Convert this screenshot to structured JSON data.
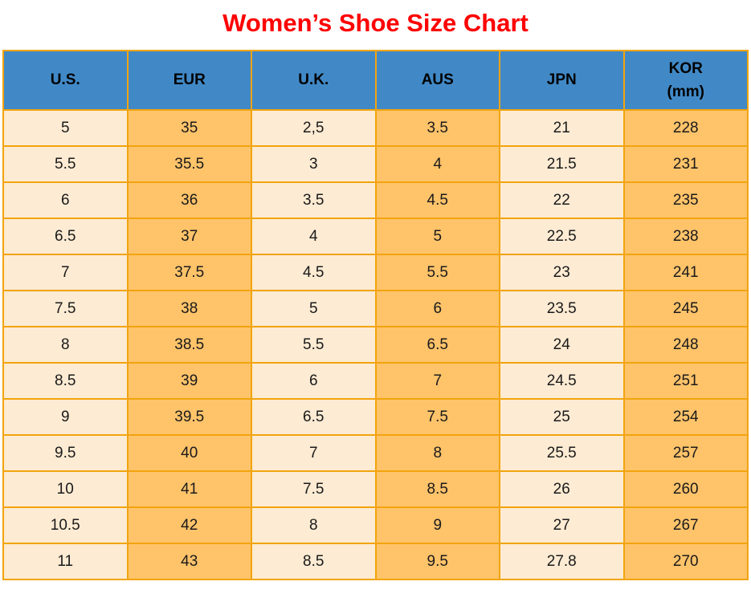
{
  "title": "Women’s Shoe Size Chart",
  "colors": {
    "title_red": "#FE0000",
    "header_blue": "#4189C6",
    "column_light": "#FDEBD3",
    "column_orange": "#FFC36A",
    "grid_border_gold": "#F2A40D",
    "header_text": "#000000",
    "cell_text": "#1A1A1A"
  },
  "ui": {
    "headers": [
      {
        "label": "U.S."
      },
      {
        "label": "EUR"
      },
      {
        "label": "U.K."
      },
      {
        "label": "AUS"
      },
      {
        "label": "JPN"
      },
      {
        "label": "KOR",
        "sublabel": "(mm)"
      }
    ]
  },
  "chart_data": {
    "type": "table",
    "title": "Women’s Shoe Size Chart",
    "columns": [
      "U.S.",
      "EUR",
      "U.K.",
      "AUS",
      "JPN",
      "KOR (mm)"
    ],
    "rows": [
      [
        "5",
        "35",
        "2,5",
        "3.5",
        "21",
        "228"
      ],
      [
        "5.5",
        "35.5",
        "3",
        "4",
        "21.5",
        "231"
      ],
      [
        "6",
        "36",
        "3.5",
        "4.5",
        "22",
        "235"
      ],
      [
        "6.5",
        "37",
        "4",
        "5",
        "22.5",
        "238"
      ],
      [
        "7",
        "37.5",
        "4.5",
        "5.5",
        "23",
        "241"
      ],
      [
        "7.5",
        "38",
        "5",
        "6",
        "23.5",
        "245"
      ],
      [
        "8",
        "38.5",
        "5.5",
        "6.5",
        "24",
        "248"
      ],
      [
        "8.5",
        "39",
        "6",
        "7",
        "24.5",
        "251"
      ],
      [
        "9",
        "39.5",
        "6.5",
        "7.5",
        "25",
        "254"
      ],
      [
        "9.5",
        "40",
        "7",
        "8",
        "25.5",
        "257"
      ],
      [
        "10",
        "41",
        "7.5",
        "8.5",
        "26",
        "260"
      ],
      [
        "10.5",
        "42",
        "8",
        "9",
        "27",
        "267"
      ],
      [
        "11",
        "43",
        "8.5",
        "9.5",
        "27.8",
        "270"
      ]
    ],
    "layout": {
      "header_position": "top",
      "grid": true,
      "column_fill_pattern": [
        "light",
        "orange",
        "light",
        "orange",
        "light",
        "orange"
      ]
    }
  }
}
